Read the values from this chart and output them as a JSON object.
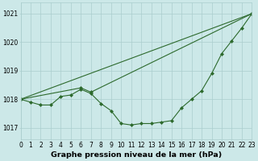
{
  "title": "Graphe pression niveau de la mer (hPa)",
  "series": [
    {
      "name": "main_hourly",
      "x": [
        0,
        1,
        2,
        3,
        4,
        5,
        6,
        7,
        8,
        9,
        10,
        11,
        12,
        13,
        14,
        15,
        16,
        17,
        18,
        19,
        20,
        21,
        22,
        23
      ],
      "y": [
        1018.0,
        1017.9,
        1017.8,
        1017.8,
        1018.1,
        1018.15,
        1018.35,
        1018.2,
        1017.85,
        1017.6,
        1017.15,
        1017.1,
        1017.15,
        1017.15,
        1017.2,
        1017.25,
        1017.7,
        1018.0,
        1018.3,
        1018.9,
        1019.6,
        1020.05,
        1020.5,
        1021.0
      ],
      "color": "#2d6a2d",
      "marker": "D",
      "markersize": 2.0,
      "linewidth": 0.8
    },
    {
      "name": "arc_line",
      "x": [
        0,
        6,
        7,
        23
      ],
      "y": [
        1018.0,
        1018.4,
        1018.25,
        1021.0
      ],
      "color": "#2d6a2d",
      "marker": "D",
      "markersize": 2.0,
      "linewidth": 0.8
    },
    {
      "name": "straight_line",
      "x": [
        0,
        23
      ],
      "y": [
        1018.0,
        1021.0
      ],
      "color": "#2d6a2d",
      "marker": "D",
      "markersize": 2.0,
      "linewidth": 0.8
    }
  ],
  "xlim": [
    0,
    23
  ],
  "ylim": [
    1016.6,
    1021.4
  ],
  "yticks": [
    1017,
    1018,
    1019,
    1020,
    1021
  ],
  "xticks": [
    0,
    1,
    2,
    3,
    4,
    5,
    6,
    7,
    8,
    9,
    10,
    11,
    12,
    13,
    14,
    15,
    16,
    17,
    18,
    19,
    20,
    21,
    22,
    23
  ],
  "bg_color": "#cce8e8",
  "grid_color": "#aacece",
  "line_color": "#2d6a2d",
  "label_color": "#000000",
  "title_fontsize": 6.8,
  "tick_fontsize": 5.5
}
